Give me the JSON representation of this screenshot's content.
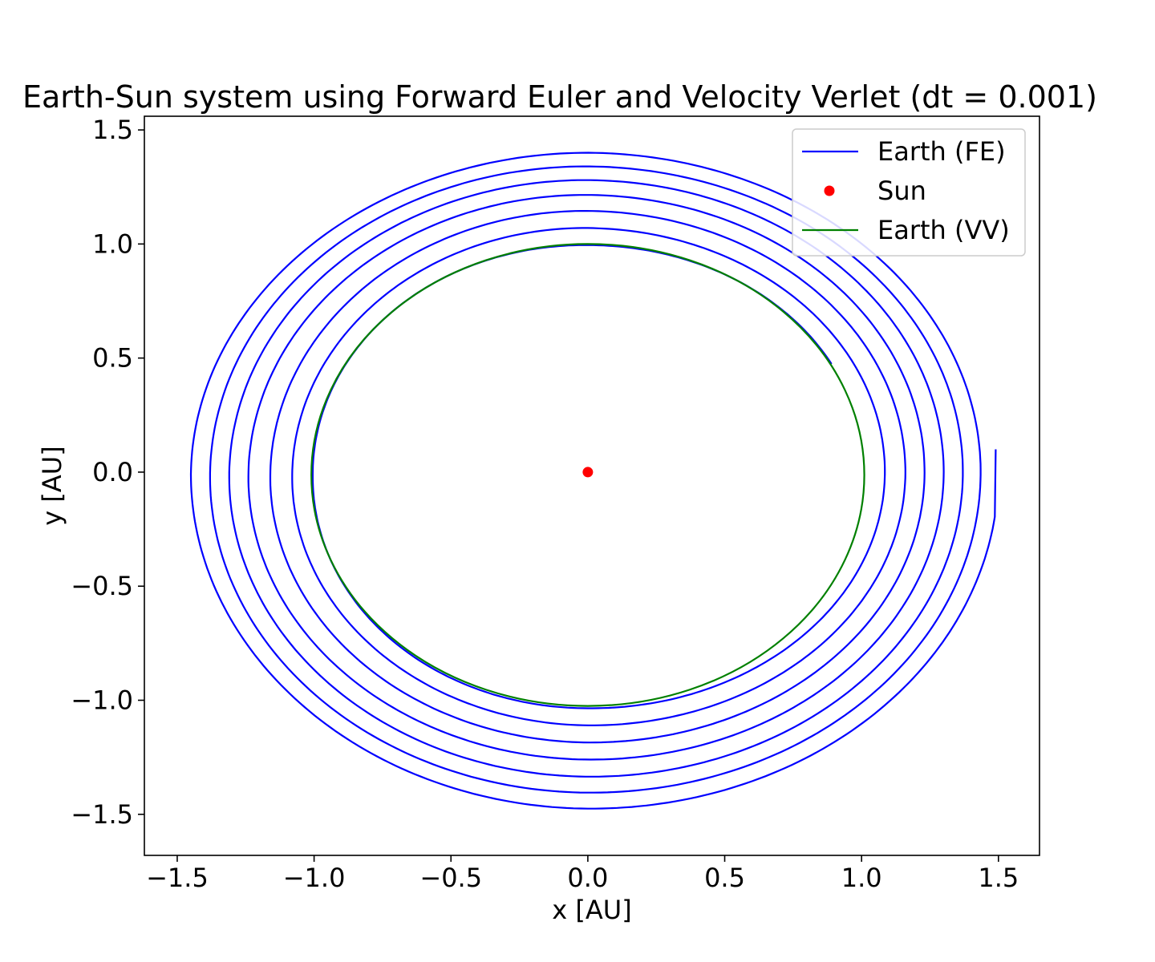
{
  "chart_data": {
    "type": "line",
    "title": "Earth-Sun system using Forward Euler and Velocity Verlet (dt = 0.001)",
    "xlabel": "x [AU]",
    "ylabel": "y [AU]",
    "xlim": [
      -1.62,
      1.65
    ],
    "ylim": [
      -1.68,
      1.56
    ],
    "xticks": [
      {
        "value": -1.5,
        "label": "−1.5"
      },
      {
        "value": -1.0,
        "label": "−1.0"
      },
      {
        "value": -0.5,
        "label": "−0.5"
      },
      {
        "value": 0.0,
        "label": "0.0"
      },
      {
        "value": 0.5,
        "label": "0.5"
      },
      {
        "value": 1.0,
        "label": "1.0"
      },
      {
        "value": 1.5,
        "label": "1.5"
      }
    ],
    "yticks": [
      {
        "value": 1.5,
        "label": "1.5"
      },
      {
        "value": 1.0,
        "label": "1.0"
      },
      {
        "value": 0.5,
        "label": "0.5"
      },
      {
        "value": 0.0,
        "label": "0.0"
      },
      {
        "value": -0.5,
        "label": "−0.5"
      },
      {
        "value": -1.0,
        "label": "−1.0"
      },
      {
        "value": -1.5,
        "label": "−1.5"
      }
    ],
    "grid": false,
    "legend_position": "upper right",
    "series": [
      {
        "name": "Earth (FE)",
        "kind": "line",
        "color": "#0000ff",
        "description": "outward spiral, one loop per year",
        "top_crossings_y": [
          1.005,
          1.08,
          1.155,
          1.225,
          1.29,
          1.35,
          1.41
        ],
        "bottom_crossings_y": [
          -1.025,
          -1.1,
          -1.175,
          -1.25,
          -1.325,
          -1.395,
          -1.465,
          -1.535
        ],
        "left_crossings_x": [
          -1.005,
          -1.08,
          -1.16,
          -1.24,
          -1.31,
          -1.38,
          -1.45
        ],
        "right_crossings_x": [
          1.01,
          1.085,
          1.16,
          1.23,
          1.3,
          1.37,
          1.435,
          1.5
        ],
        "end_point": [
          1.49,
          0.1
        ]
      },
      {
        "name": "Sun",
        "kind": "marker",
        "color": "#ff0000",
        "points": [
          [
            0.0,
            0.0
          ]
        ]
      },
      {
        "name": "Earth (VV)",
        "kind": "line",
        "color": "#008000",
        "description": "closed orbit",
        "x_range": [
          -1.01,
          1.01
        ],
        "y_range": [
          -1.025,
          1.0
        ]
      }
    ]
  }
}
